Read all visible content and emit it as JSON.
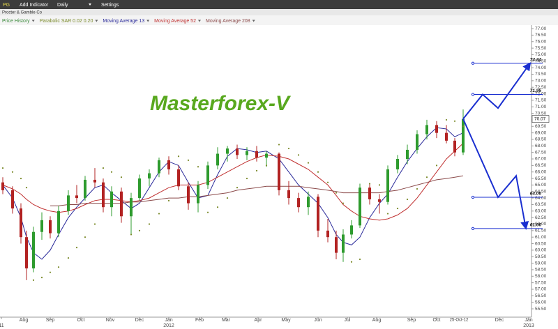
{
  "toolbar": {
    "symbol": "PG",
    "add_indicator": "Add Indicator",
    "interval": "Daily",
    "settings": "Settings",
    "company": "Procter & Gamble Co"
  },
  "chart_data": {
    "type": "candlestick",
    "watermark": "Masterforex-V",
    "price_name": "Price History",
    "up_color": "#2e9b2e",
    "down_color": "#b22222",
    "legend_color": "#3a8a3a",
    "x": [
      2,
      9,
      15,
      19,
      24,
      30,
      36,
      42,
      49,
      55,
      61,
      68,
      74,
      80,
      87,
      94,
      100,
      107,
      114,
      121,
      128,
      135,
      142,
      149,
      156,
      163,
      170,
      177,
      184,
      191,
      200,
      207,
      214,
      221,
      228,
      235,
      241,
      246,
      252,
      258,
      265,
      272,
      278,
      285,
      292,
      299,
      306,
      313,
      320,
      326,
      332
    ],
    "open": [
      65.2,
      64.6,
      63.2,
      61.0,
      58.6,
      61.4,
      62.3,
      61.3,
      63.0,
      64.2,
      64.0,
      65.4,
      65.2,
      63.3,
      64.5,
      62.6,
      64.0,
      65.5,
      65.9,
      66.9,
      66.2,
      64.9,
      63.6,
      65.0,
      66.5,
      67.4,
      67.8,
      67.3,
      67.6,
      67.1,
      67.4,
      64.6,
      64.0,
      63.3,
      64.1,
      61.5,
      61.0,
      59.8,
      61.2,
      61.9,
      64.8,
      63.9,
      63.7,
      66.2,
      67.0,
      67.7,
      68.9,
      69.6,
      69.0,
      68.4,
      67.5
    ],
    "high": [
      65.6,
      64.9,
      63.6,
      61.5,
      61.8,
      62.9,
      62.6,
      63.4,
      64.6,
      65.0,
      65.7,
      66.3,
      65.5,
      64.9,
      64.8,
      64.4,
      65.8,
      66.2,
      67.1,
      67.2,
      66.5,
      65.2,
      65.3,
      66.8,
      67.9,
      68.0,
      68.1,
      67.9,
      68.0,
      67.6,
      67.5,
      65.3,
      64.4,
      64.5,
      64.3,
      62.4,
      61.5,
      61.6,
      62.3,
      65.1,
      65.1,
      64.3,
      66.5,
      67.3,
      68.1,
      69.2,
      70.0,
      69.9,
      69.6,
      68.6,
      70.8
    ],
    "low": [
      64.3,
      62.8,
      60.5,
      57.7,
      58.3,
      60.8,
      60.9,
      61.0,
      62.7,
      63.6,
      63.8,
      64.8,
      62.9,
      62.6,
      62.1,
      61.2,
      63.8,
      64.9,
      65.6,
      65.8,
      64.6,
      63.1,
      62.9,
      64.7,
      66.2,
      66.8,
      67.0,
      66.9,
      66.8,
      66.4,
      64.2,
      63.5,
      62.9,
      62.7,
      61.0,
      60.6,
      59.3,
      59.1,
      60.9,
      61.7,
      63.5,
      62.8,
      63.5,
      65.9,
      66.6,
      67.4,
      68.5,
      68.6,
      68.2,
      67.2,
      67.3
    ],
    "close": [
      64.6,
      63.2,
      61.0,
      58.6,
      61.4,
      62.3,
      61.3,
      63.0,
      64.2,
      64.0,
      65.4,
      65.2,
      63.3,
      64.5,
      62.6,
      64.0,
      65.5,
      65.9,
      66.9,
      66.2,
      64.9,
      63.6,
      65.0,
      66.5,
      67.4,
      67.8,
      67.3,
      67.6,
      67.1,
      67.4,
      64.6,
      64.0,
      63.3,
      64.1,
      61.5,
      61.0,
      59.8,
      61.2,
      61.9,
      64.8,
      63.9,
      63.7,
      66.2,
      67.0,
      67.7,
      68.9,
      69.6,
      69.0,
      68.4,
      67.5,
      70.07
    ],
    "sar": {
      "name": "Parabolic SAR 0.02 0.20",
      "color": "#7a8a2a",
      "values": [
        66.3,
        66.0,
        65.5,
        64.8,
        57.7,
        57.9,
        58.3,
        58.7,
        59.4,
        60.2,
        61.0,
        62.0,
        66.3,
        66.0,
        65.6,
        61.2,
        61.5,
        62.0,
        62.8,
        63.8,
        67.2,
        66.9,
        66.4,
        62.9,
        63.3,
        64.0,
        64.8,
        65.5,
        66.1,
        66.5,
        68.1,
        67.8,
        67.3,
        66.7,
        66.0,
        65.2,
        64.4,
        63.6,
        59.1,
        59.3,
        65.1,
        65.0,
        62.8,
        63.2,
        63.9,
        64.7,
        65.6,
        66.5,
        70.0,
        69.9,
        69.5
      ]
    },
    "series": [
      {
        "name": "Moving Average 13",
        "color": "#2a2a9a",
        "values": [
          65.0,
          64.0,
          62.5,
          61.0,
          59.8,
          59.3,
          60.0,
          61.2,
          62.5,
          63.3,
          64.0,
          64.8,
          65.0,
          64.4,
          63.8,
          63.2,
          63.6,
          64.8,
          66.0,
          66.8,
          66.5,
          65.2,
          64.0,
          64.2,
          65.8,
          67.2,
          67.8,
          67.7,
          67.5,
          67.6,
          67.0,
          66.0,
          65.0,
          64.3,
          63.6,
          62.5,
          61.2,
          60.6,
          60.4,
          61.0,
          62.5,
          63.6,
          64.3,
          65.6,
          66.8,
          67.8,
          68.7,
          69.4,
          69.3,
          68.7,
          69.0
        ]
      },
      {
        "name": "Moving Average 52",
        "color": "#c03030",
        "values": [
          65.0,
          64.7,
          64.3,
          63.9,
          63.5,
          63.2,
          63.0,
          62.9,
          63.0,
          63.2,
          63.5,
          63.8,
          63.9,
          63.9,
          63.8,
          63.7,
          63.8,
          64.0,
          64.4,
          64.8,
          65.0,
          65.0,
          65.0,
          65.2,
          65.6,
          66.0,
          66.4,
          66.8,
          67.1,
          67.3,
          67.2,
          67.0,
          66.6,
          66.2,
          65.6,
          65.0,
          64.2,
          63.5,
          63.0,
          62.6,
          62.4,
          62.3,
          62.4,
          62.7,
          63.2,
          64.0,
          65.0,
          66.0,
          67.0,
          67.6,
          68.2
        ]
      },
      {
        "name": "Moving Average 208",
        "color": "#8b4a4a",
        "values": [
          null,
          null,
          null,
          null,
          null,
          null,
          63.4,
          63.4,
          63.5,
          63.5,
          63.6,
          63.6,
          63.6,
          63.6,
          63.6,
          63.7,
          63.7,
          63.8,
          63.9,
          64.0,
          64.0,
          64.1,
          64.1,
          64.2,
          64.3,
          64.4,
          64.6,
          64.7,
          64.8,
          64.9,
          64.9,
          64.9,
          64.9,
          64.8,
          64.7,
          64.6,
          64.5,
          64.4,
          64.4,
          64.4,
          64.4,
          64.4,
          64.5,
          64.6,
          64.8,
          65.0,
          65.2,
          65.4,
          65.5,
          65.6,
          65.7
        ]
      }
    ],
    "levels": [
      74.34,
      71.95,
      64.06,
      61.66
    ],
    "level_color": "#1a2fd0",
    "forecast": [
      {
        "x": [
          332,
          346,
          357,
          380
        ],
        "y": [
          70.07,
          71.95,
          70.9,
          74.34
        ]
      },
      {
        "x": [
          332,
          357,
          370,
          377
        ],
        "y": [
          70.07,
          64.06,
          65.7,
          61.66
        ]
      }
    ],
    "cursor": {
      "x": 329,
      "label": "25-Oct-12"
    },
    "xlim": [
      0,
      381
    ],
    "xticks": [
      {
        "value": 1,
        "label": "11"
      },
      {
        "value": 17,
        "label": "Aug"
      },
      {
        "value": 36,
        "label": "Sep"
      },
      {
        "value": 58,
        "label": "Oct"
      },
      {
        "value": 79,
        "label": "Nov"
      },
      {
        "value": 100,
        "label": "Dec"
      },
      {
        "value": 121,
        "label": "Jan"
      },
      {
        "value": 143,
        "label": "Feb"
      },
      {
        "value": 162,
        "label": "Mar"
      },
      {
        "value": 185,
        "label": "Apr"
      },
      {
        "value": 205,
        "label": "May"
      },
      {
        "value": 228,
        "label": "Jun"
      },
      {
        "value": 249,
        "label": "Jul"
      },
      {
        "value": 270,
        "label": "Aug"
      },
      {
        "value": 295,
        "label": "Sep"
      },
      {
        "value": 313,
        "label": "Oct"
      },
      {
        "value": 358,
        "label": "Dec"
      },
      {
        "value": 379,
        "label": "Jan"
      }
    ],
    "year_labels": [
      {
        "value": 121,
        "label": "2012"
      },
      {
        "value": 379,
        "label": "2013"
      }
    ],
    "ylim": [
      54.86,
      77.27
    ],
    "yticks": [
      {
        "value": 55.5,
        "label": "55.50"
      },
      {
        "value": 56,
        "label": "56.00"
      },
      {
        "value": 56.5,
        "label": "56.50"
      },
      {
        "value": 57,
        "label": "57.00"
      },
      {
        "value": 57.5,
        "label": "57.50"
      },
      {
        "value": 58,
        "label": "58.00"
      },
      {
        "value": 58.5,
        "label": "58.50"
      },
      {
        "value": 59,
        "label": "59.00"
      },
      {
        "value": 59.5,
        "label": "59.50"
      },
      {
        "value": 60,
        "label": "60.00"
      },
      {
        "value": 60.5,
        "label": "60.50"
      },
      {
        "value": 61,
        "label": "61.00"
      },
      {
        "value": 61.5,
        "label": "61.50"
      },
      {
        "value": 62,
        "label": "62.00"
      },
      {
        "value": 62.5,
        "label": "62.50"
      },
      {
        "value": 63,
        "label": "63.00"
      },
      {
        "value": 63.5,
        "label": "63.50"
      },
      {
        "value": 64,
        "label": "64.00"
      },
      {
        "value": 64.5,
        "label": "64.50"
      },
      {
        "value": 65,
        "label": "65.00"
      },
      {
        "value": 65.5,
        "label": "65.50"
      },
      {
        "value": 66,
        "label": "66.00"
      },
      {
        "value": 66.5,
        "label": "66.50"
      },
      {
        "value": 67,
        "label": "67.00"
      },
      {
        "value": 67.5,
        "label": "67.50"
      },
      {
        "value": 68,
        "label": "68.00"
      },
      {
        "value": 68.5,
        "label": "68.50"
      },
      {
        "value": 69,
        "label": "69.00"
      },
      {
        "value": 69.5,
        "label": "69.50"
      },
      {
        "value": 70,
        "label": "70.00"
      },
      {
        "value": 70.5,
        "label": "70.50"
      },
      {
        "value": 71,
        "label": "71.00"
      },
      {
        "value": 71.5,
        "label": "71.50"
      },
      {
        "value": 72,
        "label": "72.00"
      },
      {
        "value": 72.5,
        "label": "72.50"
      },
      {
        "value": 73,
        "label": "73.00"
      },
      {
        "value": 73.5,
        "label": "73.50"
      },
      {
        "value": 74,
        "label": "74.00"
      },
      {
        "value": 74.5,
        "label": "74.50"
      },
      {
        "value": 75,
        "label": "75.00"
      },
      {
        "value": 75.5,
        "label": "75.50"
      },
      {
        "value": 76,
        "label": "76.00"
      },
      {
        "value": 76.5,
        "label": "76.50"
      },
      {
        "value": 77,
        "label": "77.00"
      }
    ]
  }
}
